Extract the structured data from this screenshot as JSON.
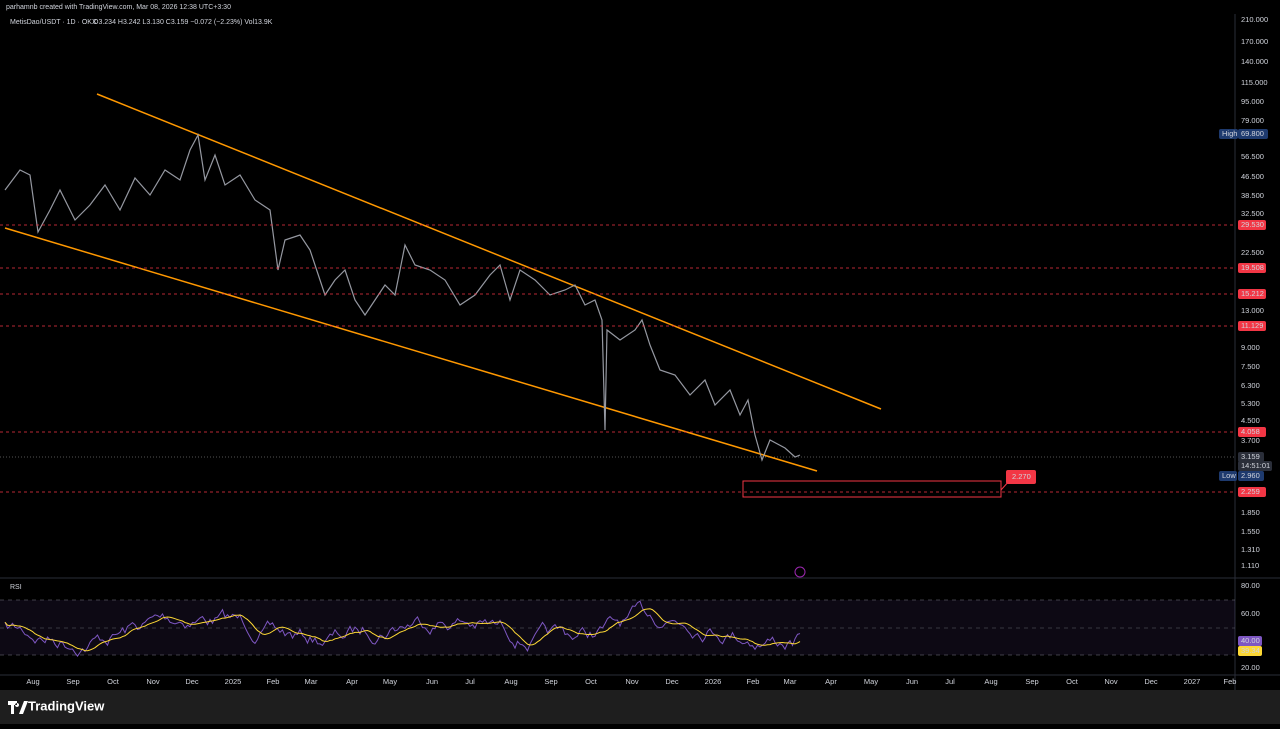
{
  "header": {
    "attribution": "parhamnb created with TradingView.com, Mar 08, 2026 12:38 UTC+3:30",
    "symbol": "MetisDao/USDT · 1D · OKX",
    "ohlc": "O3.234 H3.242 L3.130 C3.159 −0.072 (−2.23%) Vol13.9K"
  },
  "price_axis": [
    "210.000",
    "170.000",
    "140.000",
    "115.000",
    "95.000",
    "79.000",
    "56.500",
    "46.500",
    "38.500",
    "32.500",
    "22.500",
    "13.000",
    "9.000",
    "7.500",
    "6.300",
    "5.300",
    "4.500",
    "3.700",
    "1.850",
    "1.550",
    "1.310",
    "1.110"
  ],
  "levels": [
    "29.530",
    "19.508",
    "15.212",
    "11.129",
    "4.058",
    "2.259"
  ],
  "markers": {
    "high": "High",
    "high_value": "69.800",
    "low": "Low",
    "low_value": "2.960",
    "last": "3.159",
    "countdown": "14:51:01",
    "target": "2.270"
  },
  "rsi": {
    "title": "RSI",
    "axis": [
      "80.00",
      "60.00",
      "20.00"
    ],
    "value": "40.00",
    "ma": "39.34"
  },
  "time_axis": [
    "Aug",
    "Sep",
    "Oct",
    "Nov",
    "Dec",
    "2025",
    "Feb",
    "Mar",
    "Apr",
    "May",
    "Jun",
    "Jul",
    "Aug",
    "Sep",
    "Oct",
    "Nov",
    "Dec",
    "2026",
    "Feb",
    "Mar",
    "Apr",
    "May",
    "Jun",
    "Jul",
    "Aug",
    "Sep",
    "Oct",
    "Nov",
    "Dec",
    "2027",
    "Feb"
  ],
  "footer": {
    "brand": "TradingView"
  }
}
